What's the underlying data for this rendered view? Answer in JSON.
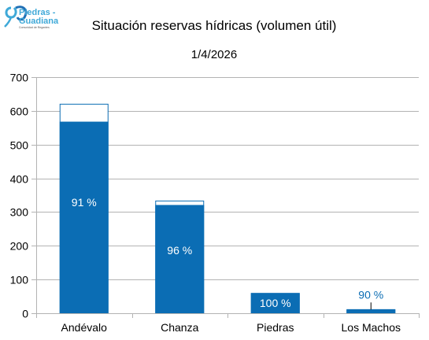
{
  "chart_data": {
    "type": "bar",
    "title": "Situación reservas hídricas (volumen útil)",
    "subtitle": "1/4/2026",
    "categories": [
      "Andévalo",
      "Chanza",
      "Piedras",
      "Los Machos"
    ],
    "series": [
      {
        "values": [
          568,
          321,
          60,
          11
        ]
      },
      {
        "values": [
          621,
          334,
          60,
          12
        ]
      }
    ],
    "data_labels": [
      "91 %",
      "96 %",
      "100 %",
      "90 %"
    ],
    "y_ticks": [
      "0",
      "100",
      "200",
      "300",
      "400",
      "500",
      "600",
      "700"
    ],
    "ylim": [
      0,
      700
    ],
    "grid": true,
    "colors": {
      "fill": "#0B6DB4",
      "outline": "#0B6DB4",
      "label_inside": "#ffffff",
      "label_outside": "#0B6DB4",
      "grid": "#B3B3B3"
    }
  },
  "logo": {
    "name": "Piedras-Guadiana",
    "line1": "Piedras -",
    "line2": "Guadiana",
    "tagline": "Comunidad de Regantes"
  }
}
